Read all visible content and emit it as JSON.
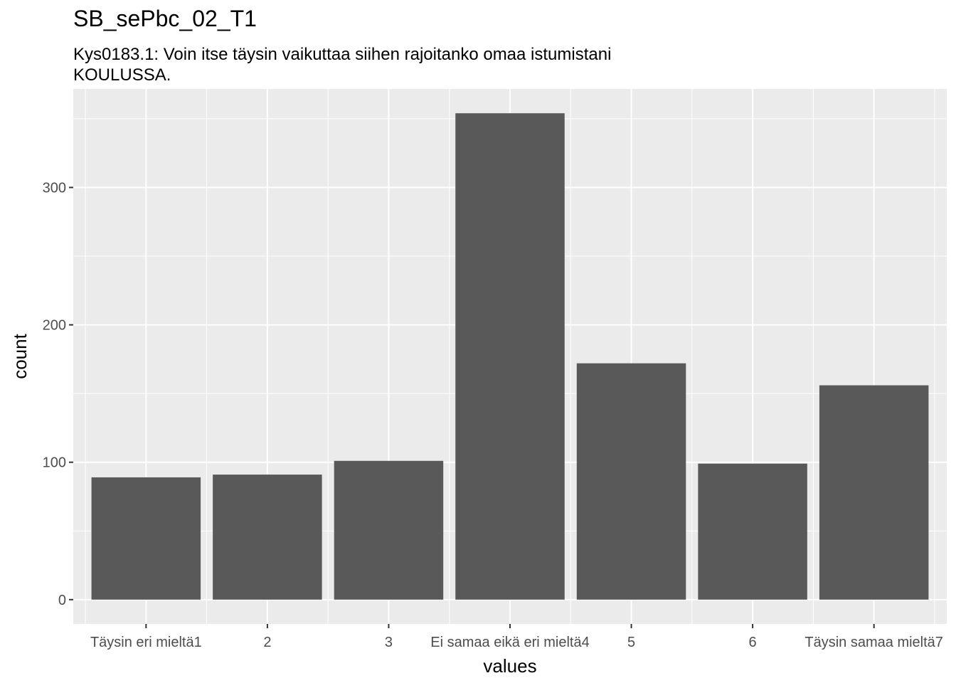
{
  "chart_data": {
    "type": "bar",
    "title": "SB_sePbc_02_T1",
    "subtitle": "Kys0183.1: Voin itse täysin vaikuttaa siihen rajoitanko omaa istumistani KOULUSSA.",
    "xlabel": "values",
    "ylabel": "count",
    "categories": [
      "Täysin eri mieltä1",
      "2",
      "3",
      "Ei samaa eikä eri mieltä4",
      "5",
      "6",
      "Täysin samaa mieltä7"
    ],
    "values": [
      89,
      91,
      101,
      354,
      172,
      99,
      156
    ],
    "ylim": [
      -17.7,
      371.7
    ],
    "yticks": [
      0,
      100,
      200,
      300
    ],
    "grid": true,
    "colors": {
      "bar": "#595959",
      "panel": "#ebebeb",
      "grid_major": "#ffffff"
    }
  }
}
